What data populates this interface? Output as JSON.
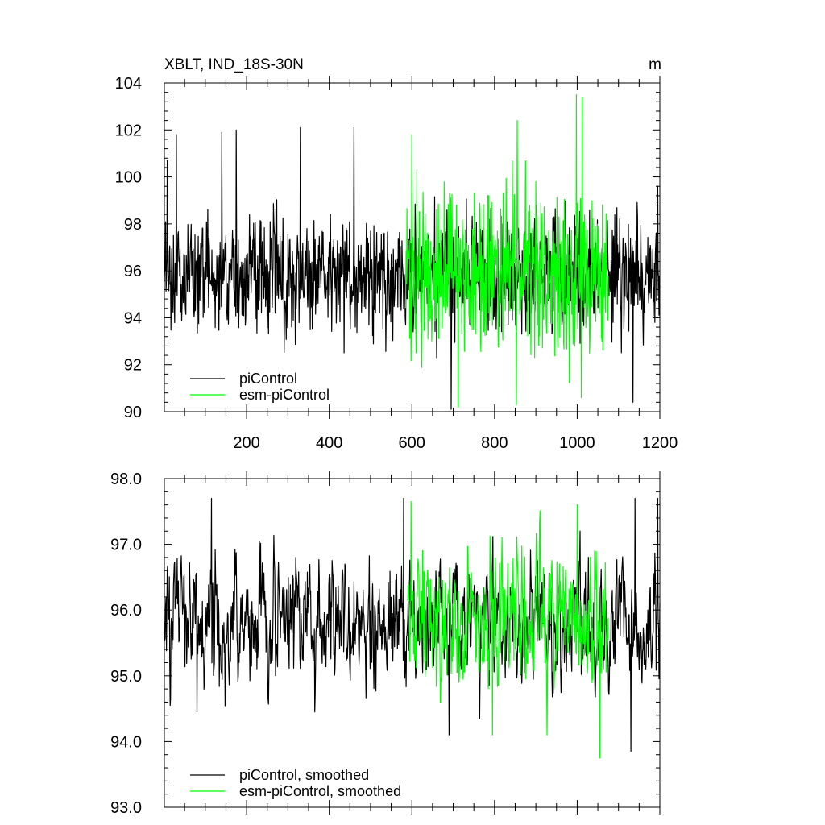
{
  "figure_title": "XBLT, IND_18S-30N",
  "units": "m",
  "colors": {
    "picontrol": "#000000",
    "esm": "#00ff00"
  },
  "chart_data": [
    {
      "type": "line",
      "title": "XBLT, IND_18S-30N",
      "unit_label": "m",
      "xlim": [
        1,
        1200
      ],
      "ylim": [
        90,
        104
      ],
      "x_ticks": [
        200,
        400,
        600,
        800,
        1000,
        1200
      ],
      "x_tick_labels": [
        "200",
        "400",
        "600",
        "800",
        "1000",
        "1200"
      ],
      "y_ticks": [
        90,
        92,
        94,
        96,
        98,
        100,
        102,
        104
      ],
      "y_tick_labels": [
        "90",
        "92",
        "94",
        "96",
        "98",
        "100",
        "102",
        "104"
      ],
      "legend_position": "bottom-left",
      "series": [
        {
          "name": "piControl",
          "color": "#000000",
          "x_range": [
            1,
            1200
          ],
          "mean": 95.8,
          "spread": 1.4,
          "peaks": [
            [
              8,
              100.7
            ],
            [
              30,
              101.8
            ],
            [
              140,
              101.9
            ],
            [
              175,
              102.0
            ],
            [
              330,
              102.1
            ],
            [
              460,
              102.1
            ],
            [
              695,
              90.1
            ],
            [
              1135,
              90.4
            ],
            [
              1195,
              99.6
            ]
          ]
        },
        {
          "name": "esm-piControl",
          "color": "#00ff00",
          "x_range": [
            585,
            1075
          ],
          "mean": 95.9,
          "spread": 1.9,
          "peaks": [
            [
              600,
              101.8
            ],
            [
              855,
              102.4
            ],
            [
              998,
              103.5
            ],
            [
              1012,
              103.4
            ],
            [
              712,
              90.2
            ],
            [
              853,
              90.3
            ],
            [
              1010,
              90.6
            ]
          ]
        }
      ]
    },
    {
      "type": "line",
      "title": "",
      "xlim": [
        1,
        1200
      ],
      "ylim": [
        93.0,
        98.0
      ],
      "x_ticks": [
        200,
        400,
        600,
        800,
        1000,
        1200
      ],
      "y_ticks": [
        93.0,
        94.0,
        95.0,
        96.0,
        97.0,
        98.0
      ],
      "y_tick_labels": [
        "93.0",
        "94.0",
        "95.0",
        "96.0",
        "97.0",
        "98.0"
      ],
      "legend_position": "bottom-left",
      "series": [
        {
          "name": "piControl, smoothed",
          "color": "#000000",
          "x_range": [
            1,
            1200
          ],
          "mean": 95.8,
          "spread": 0.55,
          "peaks": [
            [
              115,
              97.7
            ],
            [
              580,
              97.7
            ],
            [
              1140,
              97.7
            ],
            [
              1195,
              97.7
            ],
            [
              80,
              94.45
            ],
            [
              365,
              94.45
            ],
            [
              690,
              94.1
            ],
            [
              1130,
              93.85
            ]
          ]
        },
        {
          "name": "esm-piControl, smoothed",
          "color": "#00ff00",
          "x_range": [
            590,
            1075
          ],
          "mean": 95.85,
          "spread": 0.6,
          "peaks": [
            [
              598,
              97.65
            ],
            [
              1000,
              97.6
            ],
            [
              1055,
              96.8
            ],
            [
              795,
              94.1
            ],
            [
              1055,
              93.75
            ],
            [
              927,
              94.1
            ]
          ]
        }
      ]
    }
  ]
}
